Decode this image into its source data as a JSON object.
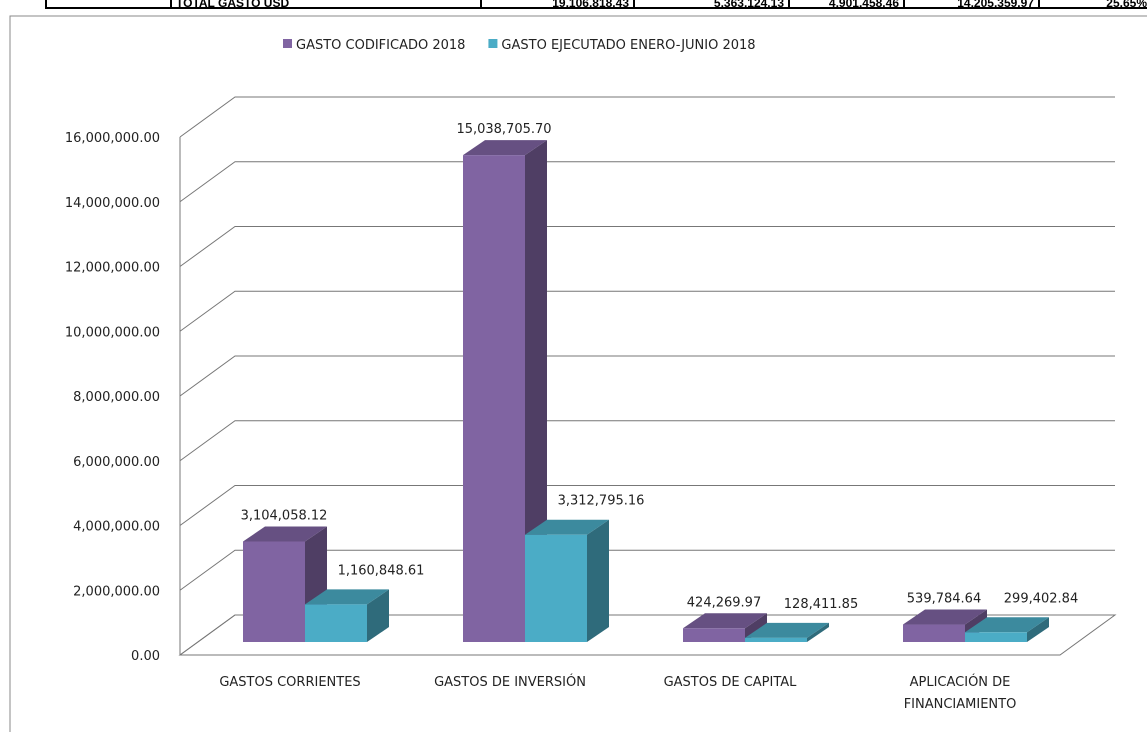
{
  "table_row": [
    "TOTAL GASTO USD",
    "19,106,818.43",
    "5,363,124.13",
    "4,901,458.46",
    "14,205,359.97",
    "25.65%"
  ],
  "chart_data": {
    "type": "bar3d",
    "categories": [
      "GASTOS CORRIENTES",
      "GASTOS DE INVERSIÓN",
      "GASTOS DE CAPITAL",
      "APLICACIÓN DE FINANCIAMIENTO"
    ],
    "series": [
      {
        "name": "GASTO CODIFICADO 2018",
        "color": "#8064a2",
        "values": [
          3104058.12,
          15038705.7,
          424269.97,
          539784.64
        ],
        "value_labels": [
          "3,104,058.12",
          "15,038,705.70",
          "424,269.97",
          "539,784.64"
        ]
      },
      {
        "name": "GASTO EJECUTADO ENERO-JUNIO 2018",
        "color": "#4bacc6",
        "values": [
          1160848.61,
          3312795.16,
          128411.85,
          299402.84
        ],
        "value_labels": [
          "1,160,848.61",
          "3,312,795.16",
          "128,411.85",
          "299,402.84"
        ]
      }
    ],
    "ylim": [
      0,
      16000000
    ],
    "yticks": [
      {
        "value": 0,
        "label": "0.00"
      },
      {
        "value": 2000000,
        "label": "2,000,000.00"
      },
      {
        "value": 4000000,
        "label": "4,000,000.00"
      },
      {
        "value": 6000000,
        "label": "6,000,000.00"
      },
      {
        "value": 8000000,
        "label": "8,000,000.00"
      },
      {
        "value": 10000000,
        "label": "10,000,000.00"
      },
      {
        "value": 12000000,
        "label": "12,000,000.00"
      },
      {
        "value": 14000000,
        "label": "14,000,000.00"
      },
      {
        "value": 16000000,
        "label": "16,000,000.00"
      }
    ],
    "grid": true
  }
}
